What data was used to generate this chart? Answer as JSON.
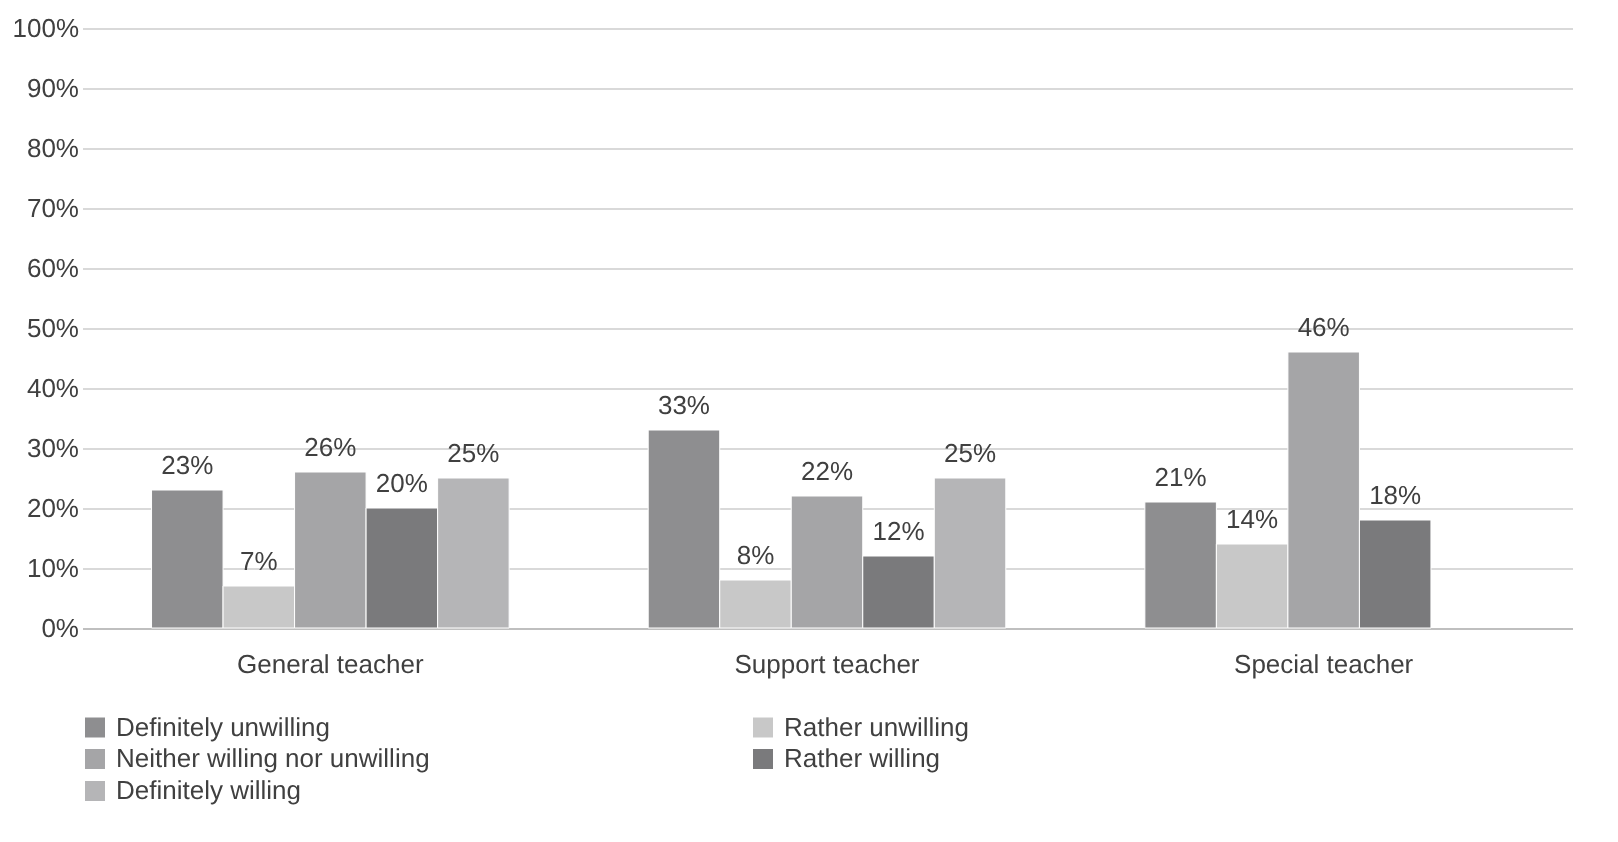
{
  "chart_data": {
    "type": "bar",
    "categories": [
      "General teacher",
      "Support teacher",
      "Special teacher"
    ],
    "series": [
      {
        "name": "Definitely unwilling",
        "color": "#8e8e90",
        "values": [
          23,
          33,
          21
        ],
        "value_labels": [
          "23%",
          "33%",
          "21%"
        ]
      },
      {
        "name": "Rather unwilling",
        "color": "#c8c8c8",
        "values": [
          7,
          8,
          14
        ],
        "value_labels": [
          "7%",
          "8%",
          "14%"
        ]
      },
      {
        "name": "Neither willing nor unwilling",
        "color": "#a5a5a7",
        "values": [
          26,
          22,
          46
        ],
        "value_labels": [
          "26%",
          "22%",
          "46%"
        ]
      },
      {
        "name": "Rather willing",
        "color": "#7a7a7c",
        "values": [
          20,
          12,
          18
        ],
        "value_labels": [
          "20%",
          "12%",
          "18%"
        ]
      },
      {
        "name": "Definitely willing",
        "color": "#b5b5b7",
        "values": [
          25,
          25,
          null
        ],
        "value_labels": [
          "25%",
          "25%",
          null
        ]
      }
    ],
    "ylim": [
      0,
      100
    ],
    "yticks": [
      {
        "value": 0,
        "label": "0%"
      },
      {
        "value": 10,
        "label": "10%"
      },
      {
        "value": 20,
        "label": "20%"
      },
      {
        "value": 30,
        "label": "30%"
      },
      {
        "value": 40,
        "label": "40%"
      },
      {
        "value": 50,
        "label": "50%"
      },
      {
        "value": 60,
        "label": "60%"
      },
      {
        "value": 70,
        "label": "70%"
      },
      {
        "value": 80,
        "label": "80%"
      },
      {
        "value": 90,
        "label": "90%"
      },
      {
        "value": 100,
        "label": "100%"
      }
    ],
    "grid": "y",
    "legend": "bottom"
  }
}
